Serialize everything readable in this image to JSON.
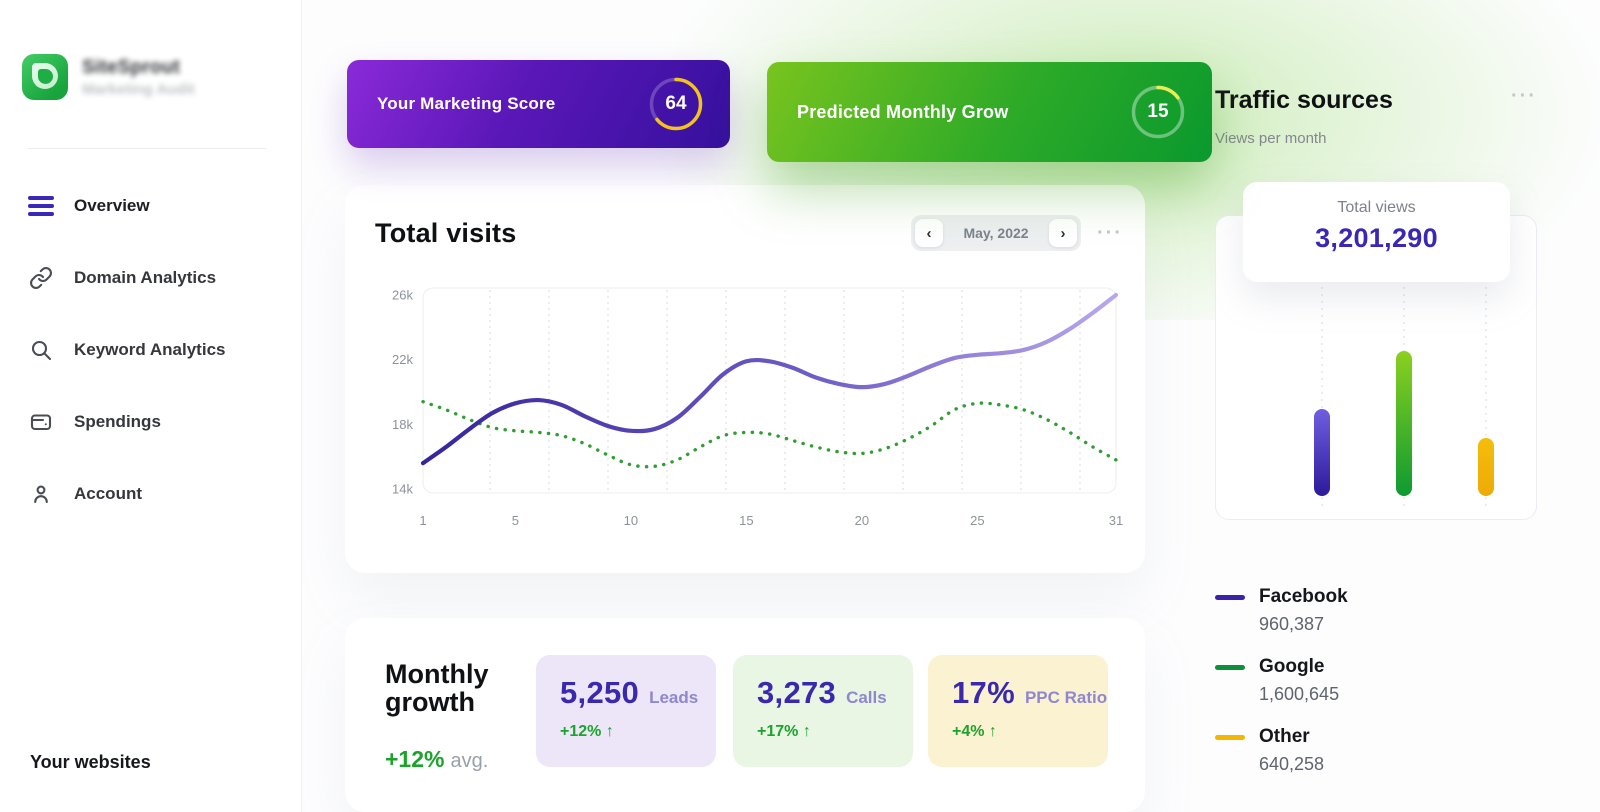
{
  "sidebar": {
    "logo": {
      "name": "SiteSprout",
      "subtitle": "Marketing Audit"
    },
    "items": [
      {
        "label": "Overview",
        "icon": "menu-icon"
      },
      {
        "label": "Domain Analytics",
        "icon": "link-icon"
      },
      {
        "label": "Keyword Analytics",
        "icon": "search-icon"
      },
      {
        "label": "Spendings",
        "icon": "wallet-icon"
      },
      {
        "label": "Account",
        "icon": "user-icon"
      }
    ],
    "footer_heading": "Your websites"
  },
  "score_cards": [
    {
      "label": "Your Marketing Score",
      "value": "64",
      "percent": 64,
      "arc_color": "#f3c31a",
      "track_color": "rgba(255,255,255,0.22)"
    },
    {
      "label": "Predicted Monthly Grow",
      "value": "15",
      "percent": 15,
      "arc_color": "#e9ed55",
      "track_color": "rgba(255,255,255,0.38)"
    }
  ],
  "visits_panel": {
    "title": "Total visits",
    "month_selector": {
      "prev_icon": "‹",
      "label": "May, 2022",
      "next_icon": "›"
    },
    "menu_icon": "···"
  },
  "chart_data": [
    {
      "id": "total-visits",
      "type": "line",
      "title": "Total visits",
      "x_range": [
        1,
        31
      ],
      "series": [
        {
          "name": "visits",
          "style": "solid-gradient",
          "color_start": "#35259c",
          "color_mid": "#6d5ac6",
          "color_end": "#b9a8ea",
          "values": [
            15600,
            16600,
            17700,
            18700,
            19300,
            19500,
            19200,
            18500,
            17900,
            17600,
            17700,
            18400,
            19700,
            21100,
            21900,
            21900,
            21500,
            20900,
            20500,
            20300,
            20500,
            21000,
            21600,
            22100,
            22300,
            22400,
            22600,
            23100,
            23900,
            24900,
            26000
          ]
        },
        {
          "name": "predicted",
          "style": "dotted",
          "color": "#2f9e33",
          "values": [
            19400,
            18900,
            18300,
            17800,
            17600,
            17500,
            17300,
            16800,
            16100,
            15500,
            15400,
            15800,
            16600,
            17300,
            17500,
            17400,
            17000,
            16600,
            16300,
            16200,
            16500,
            17100,
            17900,
            18900,
            19300,
            19200,
            18900,
            18300,
            17500,
            16600,
            15800
          ]
        }
      ],
      "ylim": [
        14000,
        26000
      ],
      "ytick_values": [
        26000,
        22000,
        18000,
        14000
      ],
      "ytick_labels": [
        "26k",
        "22k",
        "18k",
        "14k"
      ],
      "xticks": [
        1,
        5,
        10,
        15,
        20,
        25,
        31
      ],
      "grid": "vertical-dashed"
    },
    {
      "id": "traffic-sources",
      "type": "bar",
      "categories": [
        "Facebook",
        "Google",
        "Other"
      ],
      "values": [
        960387,
        1600645,
        640258
      ],
      "bar_colors": [
        [
          "#6f5fe0",
          "#2c1a9a"
        ],
        [
          "#8bd01f",
          "#0e9a31"
        ],
        [
          "#f4bd0b",
          "#edab06"
        ]
      ],
      "title": "Traffic sources",
      "subtitle": "Views per month",
      "total_label": "Total views",
      "total_value": "3,201,290",
      "grid": "vertical-dotted"
    }
  ],
  "monthly_growth": {
    "title": "Monthly growth",
    "average": {
      "value": "+12%",
      "suffix": "avg."
    },
    "stats": [
      {
        "value": "5,250",
        "label": "Leads",
        "change": "+12% ↑",
        "bg": "#ece6f8"
      },
      {
        "value": "3,273",
        "label": "Calls",
        "change": "+17% ↑",
        "bg": "#e9f6e4"
      },
      {
        "value": "17%",
        "label": "PPC Ratio",
        "change": "+4% ↑",
        "bg": "#fbf2d2"
      }
    ]
  },
  "traffic": {
    "title": "Traffic sources",
    "subtitle": "Views per month",
    "menu_icon": "···",
    "tooltip": {
      "label": "Total views",
      "value": "3,201,290"
    },
    "legend": [
      {
        "name": "Facebook",
        "value": "960,387",
        "color": "#3b22a8"
      },
      {
        "name": "Google",
        "value": "1,600,645",
        "color": "#0e8f3c"
      },
      {
        "name": "Other",
        "value": "640,258",
        "color": "#f2b705"
      }
    ]
  }
}
